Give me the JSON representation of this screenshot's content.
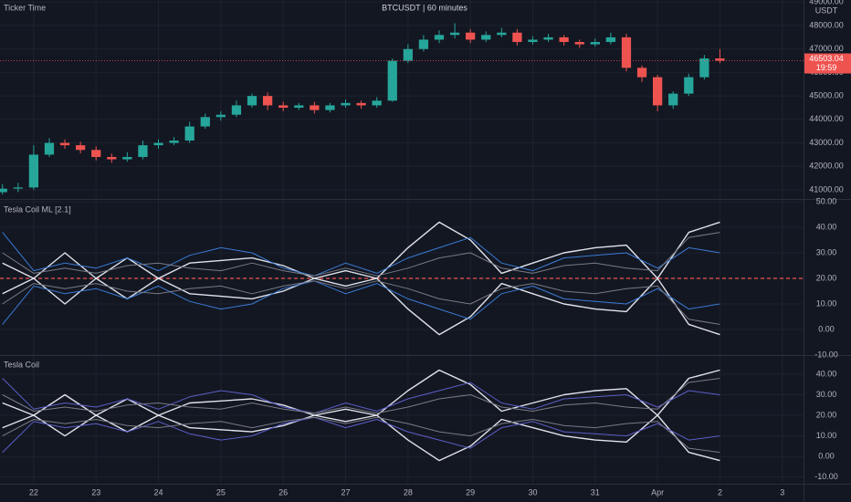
{
  "chart_data": [
    {
      "type": "candlestick",
      "title": "BTCUSDT | 60 minutes",
      "indicator_title": "Ticker Time",
      "unit": "USDT",
      "countdown": "19:59",
      "up_color": "#26a69a",
      "down_color": "#ef5350",
      "x": [
        -0.5,
        -0.25,
        0,
        0.25,
        0.5,
        0.75,
        1,
        1.25,
        1.5,
        1.75,
        2,
        2.25,
        2.5,
        2.75,
        3,
        3.25,
        3.5,
        3.75,
        4,
        4.25,
        4.5,
        4.75,
        5,
        5.25,
        5.5,
        5.75,
        6,
        6.25,
        6.5,
        6.75,
        7,
        7.25,
        7.5,
        7.75,
        8,
        8.25,
        8.5,
        8.75,
        9,
        9.25,
        9.5,
        9.75,
        10,
        10.25,
        10.5,
        10.75,
        11
      ],
      "open": [
        40900,
        41050,
        41100,
        42500,
        43000,
        42900,
        42700,
        42400,
        42300,
        42400,
        42900,
        43000,
        43100,
        43700,
        44100,
        44200,
        44600,
        45000,
        44600,
        44500,
        44600,
        44400,
        44600,
        44700,
        44600,
        44800,
        46500,
        47000,
        47400,
        47600,
        47700,
        47400,
        47600,
        47700,
        47300,
        47400,
        47500,
        47300,
        47200,
        47300,
        47500,
        46200,
        45800,
        44600,
        45100,
        45800,
        46600
      ],
      "high": [
        41250,
        41300,
        42900,
        43200,
        43150,
        43050,
        42850,
        42550,
        42600,
        43100,
        43150,
        43250,
        43900,
        44250,
        44350,
        44800,
        45100,
        45150,
        44750,
        44700,
        44750,
        44700,
        44850,
        44800,
        44950,
        46600,
        47200,
        47600,
        47800,
        48100,
        47850,
        47750,
        47900,
        47850,
        47550,
        47650,
        47600,
        47400,
        47450,
        47700,
        47650,
        46300,
        45900,
        45200,
        45950,
        46750,
        47000
      ],
      "low": [
        40800,
        40900,
        41000,
        42400,
        42750,
        42550,
        42250,
        42150,
        42200,
        42300,
        42750,
        42900,
        43000,
        43600,
        43950,
        44100,
        44500,
        44400,
        44350,
        44400,
        44250,
        44300,
        44500,
        44450,
        44500,
        44750,
        46400,
        46900,
        47250,
        47450,
        47250,
        47300,
        47500,
        47150,
        47200,
        47300,
        47150,
        47050,
        47100,
        47200,
        46050,
        45600,
        44350,
        44450,
        45000,
        45700,
        46400
      ],
      "close": [
        41050,
        41100,
        42500,
        43000,
        42900,
        42700,
        42400,
        42300,
        42400,
        42900,
        43000,
        43100,
        43700,
        44100,
        44200,
        44600,
        45000,
        44600,
        44500,
        44600,
        44400,
        44600,
        44700,
        44600,
        44800,
        46500,
        47000,
        47400,
        47600,
        47700,
        47400,
        47600,
        47700,
        47300,
        47400,
        47500,
        47300,
        47200,
        47300,
        47500,
        46200,
        45800,
        44600,
        45100,
        45800,
        46600,
        46503.04
      ],
      "xlim": [
        -0.54,
        12.34
      ],
      "ylim": [
        40610,
        49090
      ],
      "yticks": [
        {
          "value": 41000,
          "label": "41000.00"
        },
        {
          "value": 42000,
          "label": "42000.00"
        },
        {
          "value": 43000,
          "label": "43000.00"
        },
        {
          "value": 44000,
          "label": "44000.00"
        },
        {
          "value": 45000,
          "label": "45000.00"
        },
        {
          "value": 46000,
          "label": "46000.00"
        },
        {
          "value": 47000,
          "label": "47000.00"
        },
        {
          "value": 48000,
          "label": "48000.00"
        },
        {
          "value": 49000,
          "label": "49000.00"
        }
      ]
    },
    {
      "type": "line",
      "title": "Tesla Coil ML [2.1]",
      "baseline": 20,
      "x": [
        -0.5,
        0,
        0.5,
        1,
        1.5,
        2,
        2.5,
        3,
        3.5,
        4,
        4.5,
        5,
        5.5,
        6,
        6.5,
        7,
        7.5,
        8,
        8.5,
        9,
        9.5,
        10,
        10.5,
        11
      ],
      "series": [
        {
          "color": "#e0e3eb",
          "values": [
            26,
            20,
            30,
            20,
            28,
            20,
            26,
            27,
            28,
            25,
            20,
            23,
            20,
            32,
            42,
            35,
            22,
            26,
            30,
            32,
            33,
            20,
            38,
            42
          ]
        },
        {
          "color": "#e0e3eb",
          "values": [
            14,
            20,
            10,
            20,
            12,
            20,
            14,
            13,
            12,
            15,
            20,
            17,
            20,
            8,
            -2,
            5,
            18,
            14,
            10,
            8,
            7,
            20,
            2,
            -2
          ]
        },
        {
          "color": "#3a7bd5",
          "values": [
            38,
            23,
            26,
            24,
            28,
            23,
            29,
            32,
            30,
            24,
            21,
            26,
            22,
            28,
            32,
            36,
            26,
            23,
            28,
            29,
            30,
            24,
            32,
            30
          ]
        },
        {
          "color": "#3a7bd5",
          "values": [
            2,
            17,
            14,
            16,
            12,
            17,
            11,
            8,
            10,
            16,
            19,
            14,
            18,
            12,
            8,
            4,
            14,
            17,
            12,
            11,
            10,
            16,
            8,
            10
          ]
        },
        {
          "color": "#787b86",
          "values": [
            30,
            22,
            24,
            22,
            25,
            26,
            24,
            23,
            26,
            23,
            21,
            24,
            21,
            24,
            28,
            30,
            24,
            22,
            25,
            26,
            24,
            23,
            36,
            38
          ]
        },
        {
          "color": "#787b86",
          "values": [
            10,
            18,
            16,
            18,
            15,
            14,
            16,
            17,
            14,
            17,
            19,
            16,
            19,
            16,
            12,
            10,
            16,
            18,
            15,
            14,
            16,
            17,
            4,
            2
          ]
        }
      ],
      "xlim": [
        -0.54,
        12.34
      ],
      "ylim": [
        -10,
        50.7
      ],
      "yticks": [
        {
          "value": 50,
          "label": "50.00"
        },
        {
          "value": 40,
          "label": "40.00"
        },
        {
          "value": 30,
          "label": "30.00"
        },
        {
          "value": 20,
          "label": "20.00"
        },
        {
          "value": 10,
          "label": "10.00"
        },
        {
          "value": 0,
          "label": "0.00"
        },
        {
          "value": -10,
          "label": "-10.00"
        }
      ]
    },
    {
      "type": "line",
      "title": "Tesla Coil",
      "x": [
        -0.5,
        0,
        0.5,
        1,
        1.5,
        2,
        2.5,
        3,
        3.5,
        4,
        4.5,
        5,
        5.5,
        6,
        6.5,
        7,
        7.5,
        8,
        8.5,
        9,
        9.5,
        10,
        10.5,
        11
      ],
      "series": [
        {
          "color": "#e0e3eb",
          "values": [
            26,
            20,
            30,
            20,
            28,
            20,
            26,
            27,
            28,
            25,
            20,
            23,
            20,
            32,
            42,
            35,
            22,
            26,
            30,
            32,
            33,
            20,
            38,
            42
          ]
        },
        {
          "color": "#e0e3eb",
          "values": [
            14,
            20,
            10,
            20,
            12,
            20,
            14,
            13,
            12,
            15,
            20,
            17,
            20,
            8,
            -2,
            5,
            18,
            14,
            10,
            8,
            7,
            20,
            2,
            -2
          ]
        },
        {
          "color": "#5b5fc7",
          "values": [
            38,
            23,
            26,
            24,
            28,
            23,
            29,
            32,
            30,
            24,
            21,
            26,
            22,
            28,
            32,
            36,
            26,
            23,
            28,
            29,
            30,
            24,
            32,
            30
          ]
        },
        {
          "color": "#5b5fc7",
          "values": [
            2,
            17,
            14,
            16,
            12,
            17,
            11,
            8,
            10,
            16,
            19,
            14,
            18,
            12,
            8,
            4,
            14,
            17,
            12,
            11,
            10,
            16,
            8,
            10
          ]
        },
        {
          "color": "#787b86",
          "values": [
            30,
            22,
            24,
            22,
            25,
            26,
            24,
            23,
            26,
            23,
            21,
            24,
            21,
            24,
            28,
            30,
            24,
            22,
            25,
            26,
            24,
            23,
            36,
            38
          ]
        },
        {
          "color": "#787b86",
          "values": [
            10,
            18,
            16,
            18,
            15,
            14,
            16,
            17,
            14,
            17,
            19,
            16,
            19,
            16,
            12,
            10,
            16,
            18,
            15,
            14,
            16,
            17,
            4,
            2
          ]
        }
      ],
      "xlim": [
        -0.54,
        12.34
      ],
      "ylim": [
        -13.3,
        48.9
      ],
      "yticks": [
        {
          "value": 40,
          "label": "40.00"
        },
        {
          "value": 30,
          "label": "30.00"
        },
        {
          "value": 20,
          "label": "20.00"
        },
        {
          "value": 10,
          "label": "10.00"
        },
        {
          "value": 0,
          "label": "0.00"
        },
        {
          "value": -10,
          "label": "-10.00"
        }
      ],
      "xticks": [
        {
          "value": 0,
          "label": "22"
        },
        {
          "value": 1,
          "label": "23"
        },
        {
          "value": 2,
          "label": "24"
        },
        {
          "value": 3,
          "label": "25"
        },
        {
          "value": 4,
          "label": "26"
        },
        {
          "value": 5,
          "label": "27"
        },
        {
          "value": 6,
          "label": "28"
        },
        {
          "value": 7,
          "label": "29"
        },
        {
          "value": 8,
          "label": "30"
        },
        {
          "value": 9,
          "label": "31"
        },
        {
          "value": 10,
          "label": "Apr"
        },
        {
          "value": 11,
          "label": "2"
        },
        {
          "value": 12,
          "label": "3"
        }
      ]
    }
  ]
}
